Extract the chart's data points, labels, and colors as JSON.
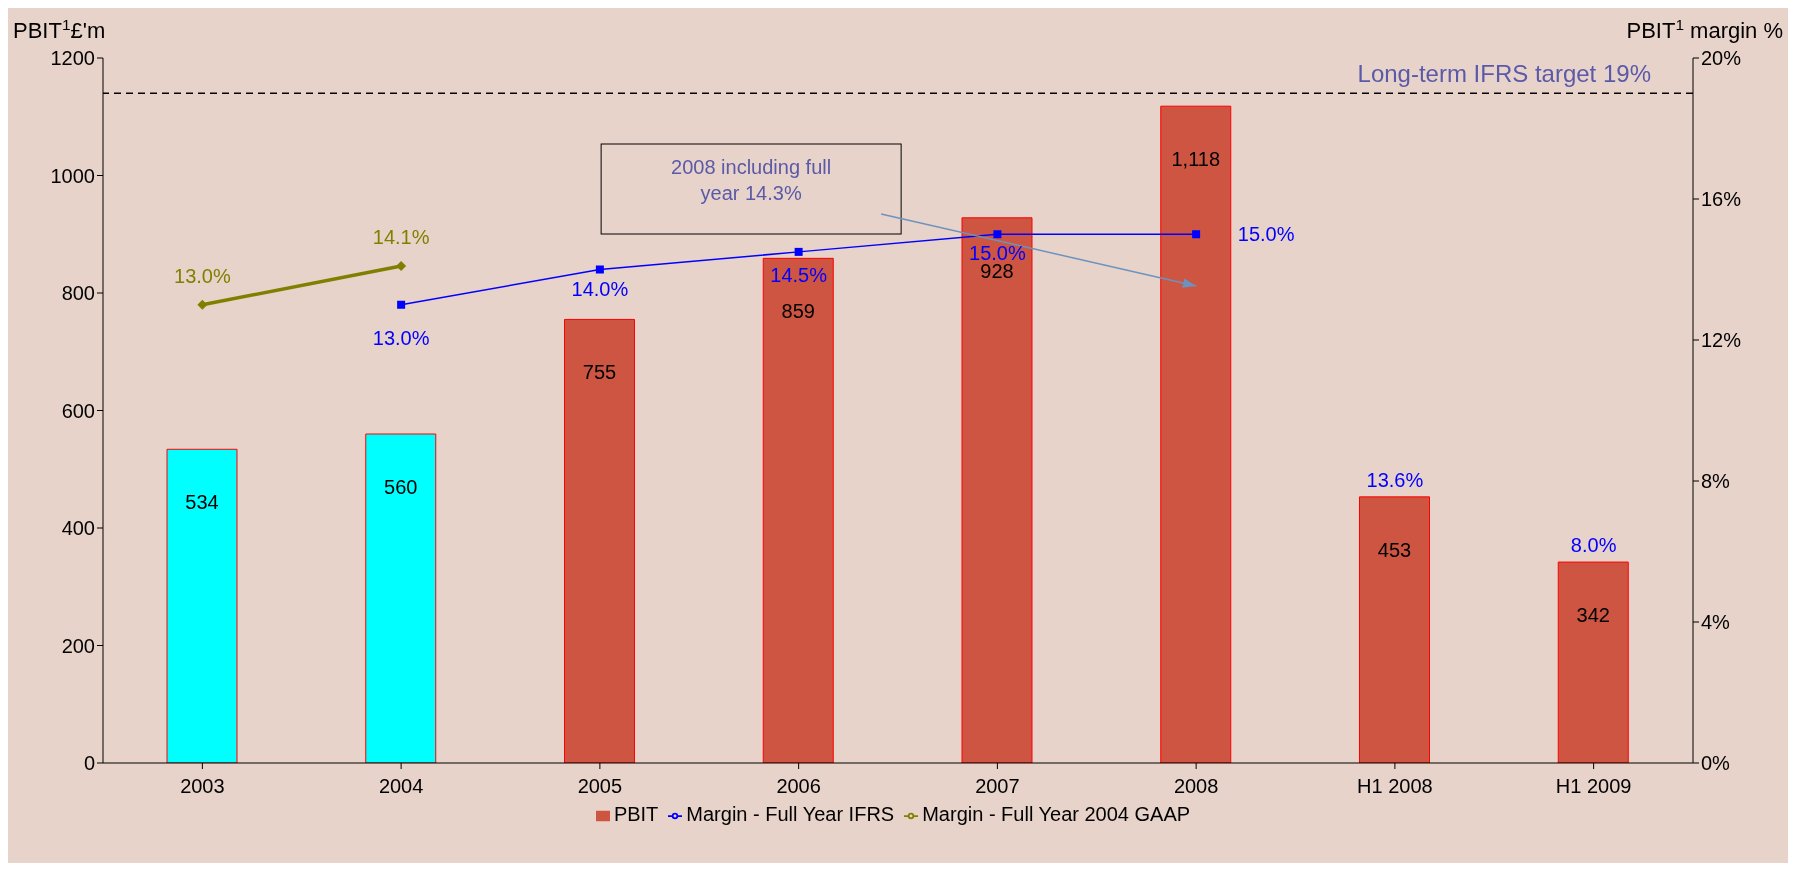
{
  "chart_data": {
    "type": "bar",
    "xlabel": null,
    "ylabel": "PBIT$^{1}$£'m",
    "y2label": "PBIT$^{1}$ margin %",
    "categories": [
      "2003",
      "2004",
      "2005",
      "2006",
      "2007",
      "2008",
      "H1 2008",
      "H1 2009"
    ],
    "series": [
      {
        "name": "PBIT",
        "color": "#cd5542",
        "colors": [
          "#00ffff",
          "#00ffff",
          "#cd5542",
          "#cd5542",
          "#cd5542",
          "#cd5542",
          "#cd5542",
          "#cd5542"
        ],
        "values": [
          534,
          560,
          755,
          859,
          928,
          1118,
          453,
          342
        ],
        "value_labels": [
          "534",
          "560",
          "755",
          "859",
          "928",
          "1,118",
          "453",
          "342"
        ]
      },
      {
        "name": "Margin - Full Year IFRS",
        "type": "line",
        "axis": "y2",
        "color": "#0000ff",
        "marker": "square",
        "values": [
          null,
          13.0,
          14.0,
          14.5,
          15.0,
          15.0,
          null,
          null
        ],
        "value_labels": [
          null,
          "13.0%",
          "14.0%",
          "14.5%",
          "15.0%",
          "15.0%",
          null,
          null
        ]
      },
      {
        "name": "Margin - Full Year 2004 GAAP",
        "type": "line",
        "axis": "y2",
        "color": "#808000",
        "marker": "diamond",
        "values": [
          13.0,
          14.1,
          null,
          null,
          null,
          null,
          null,
          null
        ],
        "value_labels": [
          "13.0%",
          "14.1%",
          null,
          null,
          null,
          null,
          null,
          null
        ]
      }
    ],
    "ylim": [
      0,
      1200
    ],
    "yticks": [
      0,
      200,
      400,
      600,
      800,
      1000,
      1200
    ],
    "y2lim": [
      0,
      20
    ],
    "y2ticks": [
      {
        "value": 0,
        "label": "0%"
      },
      {
        "value": 4,
        "label": "4%"
      },
      {
        "value": 8,
        "label": "8%"
      },
      {
        "value": 12,
        "label": "12%"
      },
      {
        "value": 16,
        "label": "16%"
      },
      {
        "value": 20,
        "label": "20%"
      }
    ],
    "ref_lines": [
      {
        "axis": "y2",
        "value": 19,
        "label": "Long-term IFRS target 19%",
        "color": "#000000",
        "line_style": "dashed"
      }
    ],
    "annotations": [
      "2008 including full year 14.3%",
      {
        "text": "13.6%",
        "x": "H1 2008",
        "y": 453
      },
      {
        "text": "8.0%",
        "x": "H1 2009",
        "y": 342
      }
    ],
    "legend": "bottom"
  }
}
